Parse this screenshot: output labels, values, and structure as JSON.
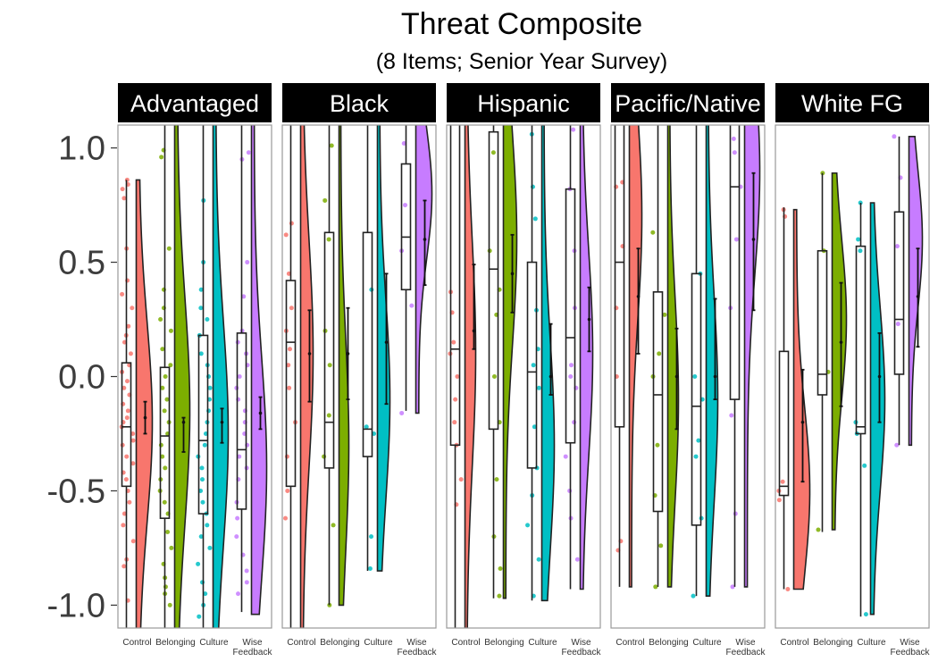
{
  "chart_data": {
    "type": "raincloud",
    "title": "Threat Composite",
    "subtitle": "(8 Items; Senior Year Survey)",
    "xlabel": "",
    "ylabel": "",
    "ylim": [
      -1.1,
      1.1
    ],
    "yticks": [
      1.0,
      0.5,
      0.0,
      -0.5,
      -1.0
    ],
    "ytick_labels": [
      "1.0",
      "0.5",
      "0.0",
      "-0.5",
      "-1.0"
    ],
    "categories": [
      "Control",
      "Belonging",
      "Culture",
      "Wise Feedback"
    ],
    "category_labels": [
      [
        "Control"
      ],
      [
        "Belonging"
      ],
      [
        "Culture"
      ],
      [
        "Wise",
        "Feedback"
      ]
    ],
    "colors": [
      "#F8766D",
      "#7CAE00",
      "#00BFC4",
      "#C77CFF"
    ],
    "panels": [
      {
        "name": "Advantaged",
        "groups": [
          {
            "median": -0.22,
            "q1": -0.48,
            "q3": 0.06,
            "wlo": -1.12,
            "whi": 0.86,
            "mean": -0.18,
            "ci": [
              -0.25,
              -0.11
            ],
            "dens_lo": -1.12,
            "dens_hi": 0.86,
            "peak": -0.2,
            "width": 0.9,
            "points": [
              0.86,
              0.84,
              0.82,
              0.78,
              0.56,
              0.42,
              0.36,
              0.3,
              0.22,
              0.18,
              0.15,
              0.1,
              0.05,
              0.02,
              -0.02,
              -0.05,
              -0.08,
              -0.12,
              -0.15,
              -0.18,
              -0.2,
              -0.22,
              -0.25,
              -0.28,
              -0.3,
              -0.35,
              -0.38,
              -0.42,
              -0.45,
              -0.5,
              -0.55,
              -0.6,
              -0.65,
              -0.72,
              -0.8,
              -0.83,
              -0.98
            ]
          },
          {
            "median": -0.26,
            "q1": -0.62,
            "q3": 0.04,
            "wlo": -1.12,
            "whi": 1.12,
            "mean": -0.2,
            "ci": [
              -0.33,
              -0.18
            ],
            "dens_lo": -1.12,
            "dens_hi": 1.12,
            "peak": -0.15,
            "width": 0.85,
            "points": [
              0.99,
              0.96,
              0.56,
              0.38,
              0.3,
              0.25,
              0.2,
              0.12,
              0.05,
              0.0,
              -0.05,
              -0.1,
              -0.15,
              -0.2,
              -0.25,
              -0.3,
              -0.35,
              -0.4,
              -0.45,
              -0.5,
              -0.55,
              -0.6,
              -0.68,
              -0.75,
              -0.82,
              -0.88,
              -0.92,
              -0.95,
              -1.0
            ]
          },
          {
            "median": -0.28,
            "q1": -0.6,
            "q3": 0.18,
            "wlo": -1.12,
            "whi": 1.12,
            "mean": -0.2,
            "ci": [
              -0.29,
              -0.14
            ],
            "dens_lo": -1.12,
            "dens_hi": 1.12,
            "peak": -0.25,
            "width": 0.85,
            "points": [
              0.77,
              0.5,
              0.38,
              0.3,
              0.25,
              0.18,
              0.1,
              0.05,
              0.0,
              -0.05,
              -0.1,
              -0.15,
              -0.2,
              -0.25,
              -0.3,
              -0.35,
              -0.4,
              -0.45,
              -0.5,
              -0.55,
              -0.6,
              -0.65,
              -0.7,
              -0.75,
              -0.82,
              -0.9,
              -0.95,
              -1.0,
              -1.05
            ]
          },
          {
            "median": -0.32,
            "q1": -0.58,
            "q3": 0.19,
            "wlo": -1.03,
            "whi": 1.12,
            "mean": -0.16,
            "ci": [
              -0.23,
              -0.09
            ],
            "dens_lo": -1.04,
            "dens_hi": 1.12,
            "peak": -0.4,
            "width": 0.85,
            "points": [
              0.98,
              0.95,
              0.5,
              0.35,
              0.2,
              0.15,
              0.1,
              0.05,
              0.0,
              -0.05,
              -0.1,
              -0.15,
              -0.2,
              -0.25,
              -0.3,
              -0.35,
              -0.4,
              -0.45,
              -0.55,
              -0.62,
              -0.7,
              -0.78,
              -0.85,
              -0.9,
              -0.95
            ]
          }
        ]
      },
      {
        "name": "Black",
        "groups": [
          {
            "median": 0.15,
            "q1": -0.48,
            "q3": 0.42,
            "wlo": -1.12,
            "whi": 1.12,
            "mean": 0.1,
            "ci": [
              -0.11,
              0.29
            ],
            "dens_lo": -1.12,
            "dens_hi": 1.12,
            "peak": 0.1,
            "width": 0.7,
            "points": [
              0.67,
              0.62,
              0.45,
              0.3,
              0.2,
              0.12,
              0.05,
              -0.05,
              -0.2,
              -0.35,
              -0.5,
              -0.62
            ]
          },
          {
            "median": -0.2,
            "q1": -0.4,
            "q3": 0.63,
            "wlo": -1.0,
            "whi": 1.12,
            "mean": 0.1,
            "ci": [
              -0.1,
              0.3
            ],
            "dens_lo": -1.0,
            "dens_hi": 1.12,
            "peak": -0.3,
            "width": 0.55,
            "points": [
              1.01,
              0.77,
              0.6,
              0.2,
              0.05,
              -0.17,
              -0.35,
              -0.65,
              -1.0
            ]
          },
          {
            "median": -0.23,
            "q1": -0.35,
            "q3": 0.63,
            "wlo": -0.85,
            "whi": 1.12,
            "mean": 0.15,
            "ci": [
              -0.12,
              0.45
            ],
            "dens_lo": -0.85,
            "dens_hi": 1.12,
            "peak": -0.1,
            "width": 0.7,
            "points": [
              0.38,
              -0.22,
              -0.25,
              -0.7,
              -0.84
            ]
          },
          {
            "median": 0.61,
            "q1": 0.38,
            "q3": 0.93,
            "wlo": -0.15,
            "whi": 1.12,
            "mean": 0.6,
            "ci": [
              0.4,
              0.77
            ],
            "dens_lo": -0.16,
            "dens_hi": 1.12,
            "peak": 0.8,
            "width": 0.9,
            "points": [
              1.02,
              0.75,
              0.55,
              0.31,
              -0.16
            ]
          }
        ]
      },
      {
        "name": "Hispanic",
        "groups": [
          {
            "median": 0.12,
            "q1": -0.3,
            "q3": 1.12,
            "wlo": -1.12,
            "whi": 1.12,
            "mean": 0.2,
            "ci": [
              0.12,
              0.49
            ],
            "dens_lo": -1.12,
            "dens_hi": 1.12,
            "peak": 0.1,
            "width": 0.6,
            "points": [
              0.37,
              0.28,
              0.15,
              0.1,
              0.0,
              -0.1,
              -0.2,
              -0.3,
              -0.45,
              -0.56
            ]
          },
          {
            "median": 0.47,
            "q1": -0.23,
            "q3": 1.07,
            "wlo": -0.97,
            "whi": 1.12,
            "mean": 0.45,
            "ci": [
              0.28,
              0.62
            ],
            "dens_lo": -0.97,
            "dens_hi": 1.12,
            "peak": 0.6,
            "width": 0.75,
            "points": [
              0.98,
              0.55,
              0.38,
              0.27,
              0.0,
              -0.2,
              -0.45,
              -0.7,
              -0.84,
              -0.96
            ]
          },
          {
            "median": 0.02,
            "q1": -0.4,
            "q3": 0.5,
            "wlo": -0.98,
            "whi": 1.1,
            "mean": 0.0,
            "ci": [
              -0.08,
              0.23
            ],
            "dens_lo": -0.98,
            "dens_hi": 1.1,
            "peak": -0.3,
            "width": 0.7,
            "points": [
              1.06,
              0.83,
              0.69,
              0.29,
              0.12,
              0.05,
              -0.05,
              -0.22,
              -0.4,
              -0.52,
              -0.65,
              -0.8,
              -0.96
            ]
          },
          {
            "median": 0.17,
            "q1": -0.29,
            "q3": 0.82,
            "wlo": -0.93,
            "whi": 1.12,
            "mean": 0.25,
            "ci": [
              0.11,
              0.39
            ],
            "dens_lo": -0.93,
            "dens_hi": 1.12,
            "peak": 0.1,
            "width": 0.7,
            "points": [
              1.08,
              0.82,
              0.55,
              0.3,
              0.05,
              0.0,
              -0.05,
              -0.2,
              -0.35,
              -0.5,
              -0.62,
              -0.8
            ]
          }
        ]
      },
      {
        "name": "Pacific/Native",
        "groups": [
          {
            "median": 0.5,
            "q1": -0.22,
            "q3": 1.12,
            "wlo": -0.92,
            "whi": 1.12,
            "mean": 0.35,
            "ci": [
              0.1,
              0.56
            ],
            "dens_lo": -0.92,
            "dens_hi": 1.12,
            "peak": 0.7,
            "width": 0.7,
            "points": [
              0.85,
              0.83,
              0.57,
              0.3,
              0.0,
              -0.72,
              -0.76
            ]
          },
          {
            "median": -0.08,
            "q1": -0.59,
            "q3": 0.37,
            "wlo": -0.92,
            "whi": 1.12,
            "mean": 0.0,
            "ci": [
              -0.23,
              0.21
            ],
            "dens_lo": -0.92,
            "dens_hi": 1.12,
            "peak": -0.1,
            "width": 0.6,
            "points": [
              0.63,
              0.27,
              0.1,
              0.0,
              -0.3,
              -0.52,
              -0.74,
              -0.92
            ]
          },
          {
            "median": -0.13,
            "q1": -0.65,
            "q3": 0.45,
            "wlo": -0.96,
            "whi": 1.12,
            "mean": 0.0,
            "ci": [
              -0.1,
              0.34
            ],
            "dens_lo": -0.96,
            "dens_hi": 1.12,
            "peak": -0.1,
            "width": 0.65,
            "points": [
              0.45,
              0.0,
              -0.1,
              -0.28,
              -0.35,
              -0.62,
              -0.96
            ]
          },
          {
            "median": 0.83,
            "q1": -0.1,
            "q3": 1.12,
            "wlo": -0.92,
            "whi": 1.12,
            "mean": 0.6,
            "ci": [
              0.29,
              0.89
            ],
            "dens_lo": -0.92,
            "dens_hi": 1.12,
            "peak": 0.9,
            "width": 0.85,
            "points": [
              1.04,
              0.98,
              0.83,
              0.6,
              0.3,
              -0.17,
              -0.6,
              -0.92
            ]
          }
        ]
      },
      {
        "name": "White FG",
        "groups": [
          {
            "median": -0.48,
            "q1": -0.52,
            "q3": 0.11,
            "wlo": -0.93,
            "whi": 0.74,
            "mean": -0.2,
            "ci": [
              -0.46,
              0.03
            ],
            "dens_lo": -0.93,
            "dens_hi": 0.73,
            "peak": -0.5,
            "width": 0.9,
            "points": [
              0.73,
              0.7,
              -0.46,
              -0.5,
              -0.54,
              -0.93
            ]
          },
          {
            "median": 0.01,
            "q1": -0.08,
            "q3": 0.55,
            "wlo": -0.68,
            "whi": 0.89,
            "mean": 0.15,
            "ci": [
              -0.13,
              0.41
            ],
            "dens_lo": -0.67,
            "dens_hi": 0.89,
            "peak": 0.25,
            "width": 0.8,
            "points": [
              0.89,
              0.55,
              0.02,
              -0.67
            ]
          },
          {
            "median": -0.22,
            "q1": -0.25,
            "q3": 0.57,
            "wlo": -1.05,
            "whi": 0.76,
            "mean": 0.0,
            "ci": [
              -0.2,
              0.19
            ],
            "dens_lo": -1.04,
            "dens_hi": 0.76,
            "peak": -0.1,
            "width": 0.8,
            "points": [
              0.76,
              0.6,
              0.55,
              -0.2,
              -0.25,
              -0.39,
              -1.04
            ]
          },
          {
            "median": 0.25,
            "q1": 0.01,
            "q3": 0.72,
            "wlo": -0.3,
            "whi": 1.05,
            "mean": 0.35,
            "ci": [
              0.13,
              0.56
            ],
            "dens_lo": -0.3,
            "dens_hi": 1.05,
            "peak": 0.6,
            "width": 0.75,
            "points": [
              1.05,
              0.87,
              0.57,
              0.23,
              -0.3
            ]
          }
        ]
      }
    ]
  }
}
